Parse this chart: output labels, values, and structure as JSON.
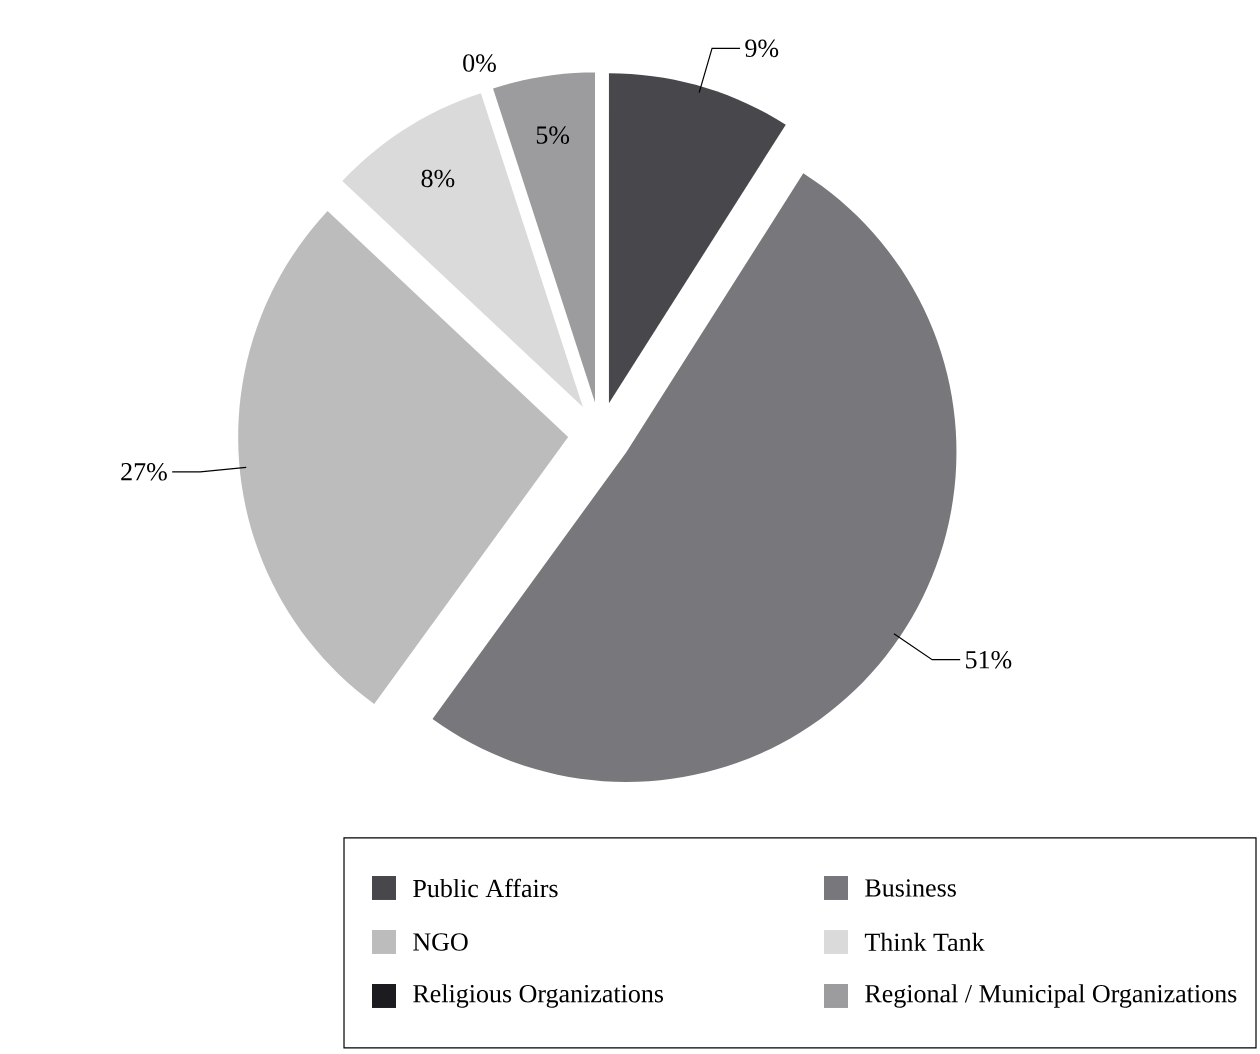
{
  "chart_data": {
    "type": "pie",
    "categories": [
      "Public Affairs",
      "Business",
      "NGO",
      "Think Tank",
      "Religious Organizations",
      "Regional / Municipal Organizations"
    ],
    "values": [
      9,
      51,
      27,
      8,
      0,
      5
    ],
    "value_labels": [
      "9%",
      "51%",
      "27%",
      "8%",
      "0%",
      "5%"
    ],
    "colors": [
      "#48484c",
      "#78787c",
      "#bcbcbc",
      "#dadada",
      "#1c1c20",
      "#9c9c9e"
    ],
    "legend": "bottom"
  }
}
